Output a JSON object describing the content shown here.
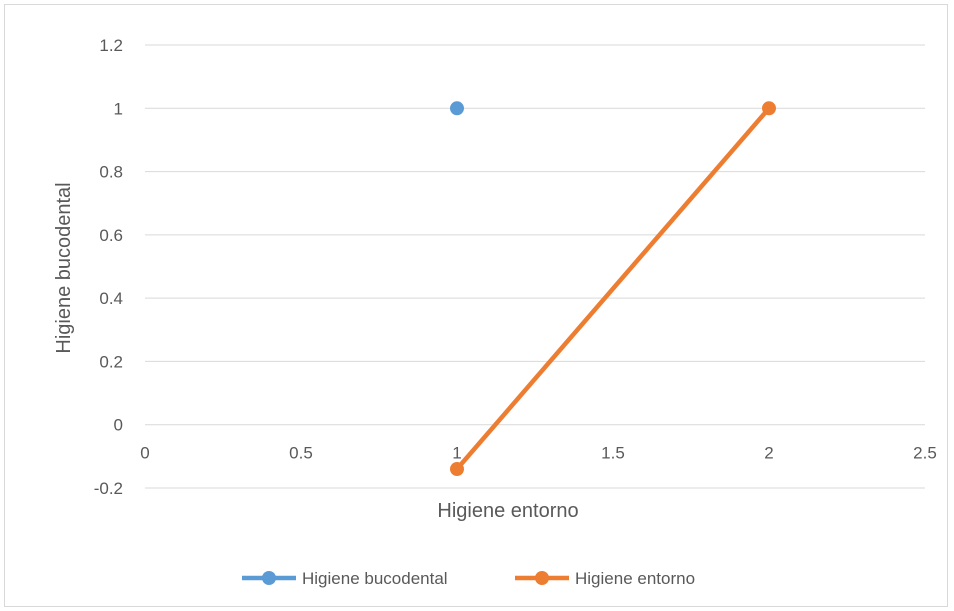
{
  "chart_data": {
    "type": "scatter",
    "title": "",
    "xlabel": "Higiene entorno",
    "ylabel": "Higiene bucodental",
    "xlim": [
      0,
      2.5
    ],
    "ylim": [
      -0.2,
      1.2
    ],
    "x_ticks": [
      "0",
      "0.5",
      "1",
      "1.5",
      "2",
      "2.5"
    ],
    "y_ticks": [
      "1.2",
      "1",
      "0.8",
      "0.6",
      "0.4",
      "0.2",
      "0",
      "-0.2"
    ],
    "grid": true,
    "legend_position": "bottom",
    "series": [
      {
        "name": "Higiene bucodental",
        "color": "#5b9bd5",
        "lines": false,
        "points": [
          {
            "x": 1,
            "y": 1
          }
        ]
      },
      {
        "name": "Higiene entorno",
        "color": "#ed7d31",
        "lines": true,
        "points": [
          {
            "x": 1,
            "y": -0.14
          },
          {
            "x": 2,
            "y": 1
          }
        ]
      }
    ]
  }
}
